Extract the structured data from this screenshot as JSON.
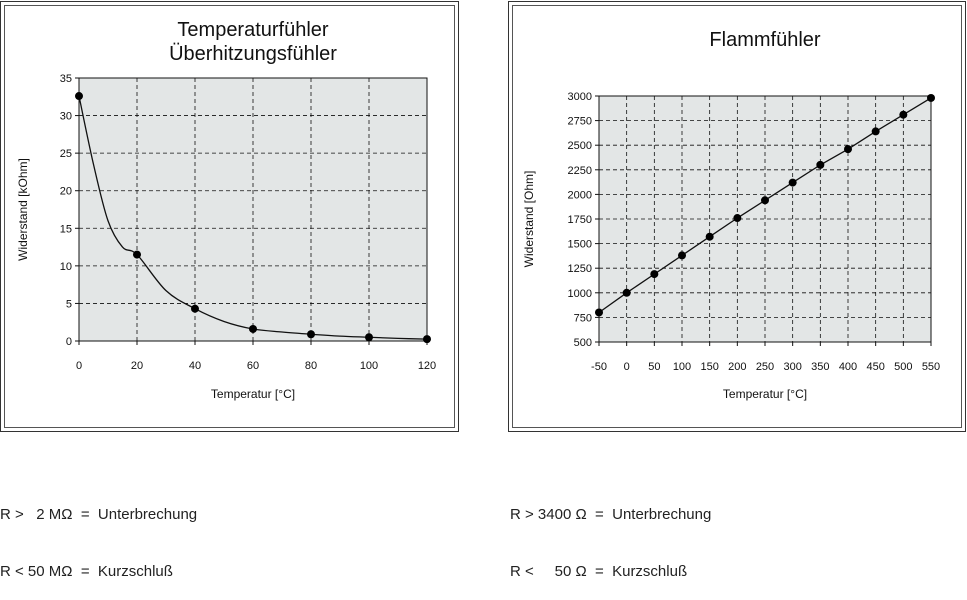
{
  "chart_data": [
    {
      "type": "line",
      "title": [
        "Temperaturfühler",
        "Überhitzungsfühler"
      ],
      "xlabel": "Temperatur [°C]",
      "ylabel": "Widerstand [kOhm]",
      "xlim": [
        0,
        120
      ],
      "ylim": [
        0,
        35
      ],
      "xticks": [
        0,
        20,
        40,
        60,
        80,
        100,
        120
      ],
      "yticks": [
        0,
        5,
        10,
        15,
        20,
        25,
        30,
        35
      ],
      "grid": true,
      "smooth": true,
      "curve": {
        "x": [
          0,
          5,
          10,
          15,
          20,
          30,
          40,
          50,
          60,
          70,
          80,
          90,
          100,
          110,
          120
        ],
        "y": [
          32.6,
          23.5,
          16.0,
          12.5,
          11.5,
          6.7,
          4.3,
          2.6,
          1.6,
          1.2,
          0.9,
          0.65,
          0.5,
          0.35,
          0.25
        ]
      },
      "points": {
        "x": [
          0,
          20,
          40,
          60,
          80,
          100,
          120
        ],
        "y": [
          32.6,
          11.5,
          4.3,
          1.6,
          0.9,
          0.5,
          0.25
        ]
      },
      "notes": [
        "R >   2 MΩ  =  Unterbrechung",
        "R < 50 MΩ  =  Kurzschluß"
      ]
    },
    {
      "type": "line",
      "title": [
        "Flammfühler"
      ],
      "xlabel": "Temperatur [°C]",
      "ylabel": "Widerstand [Ohm]",
      "xlim": [
        -50,
        550
      ],
      "ylim": [
        500,
        3000
      ],
      "xticks": [
        -50,
        0,
        50,
        100,
        150,
        200,
        250,
        300,
        350,
        400,
        450,
        500,
        550
      ],
      "yticks": [
        500,
        750,
        1000,
        1250,
        1500,
        1750,
        2000,
        2250,
        2500,
        2750,
        3000
      ],
      "grid": true,
      "smooth": false,
      "curve": {
        "x": [
          -50,
          0,
          50,
          100,
          150,
          200,
          250,
          300,
          350,
          400,
          450,
          500,
          550
        ],
        "y": [
          800,
          1000,
          1190,
          1380,
          1570,
          1760,
          1940,
          2120,
          2300,
          2460,
          2640,
          2810,
          2980
        ]
      },
      "points": {
        "x": [
          -50,
          0,
          50,
          100,
          150,
          200,
          250,
          300,
          350,
          400,
          450,
          500,
          550
        ],
        "y": [
          800,
          1000,
          1190,
          1380,
          1570,
          1760,
          1940,
          2120,
          2300,
          2460,
          2640,
          2810,
          2980
        ]
      },
      "notes": [
        "R > 3400 Ω  =  Unterbrechung",
        "R <     50 Ω  =  Kurzschluß"
      ]
    }
  ],
  "colors": {
    "plot_bg": "#e3e6e6",
    "grid": "#111111",
    "line": "#111111",
    "marker": "#000000"
  }
}
